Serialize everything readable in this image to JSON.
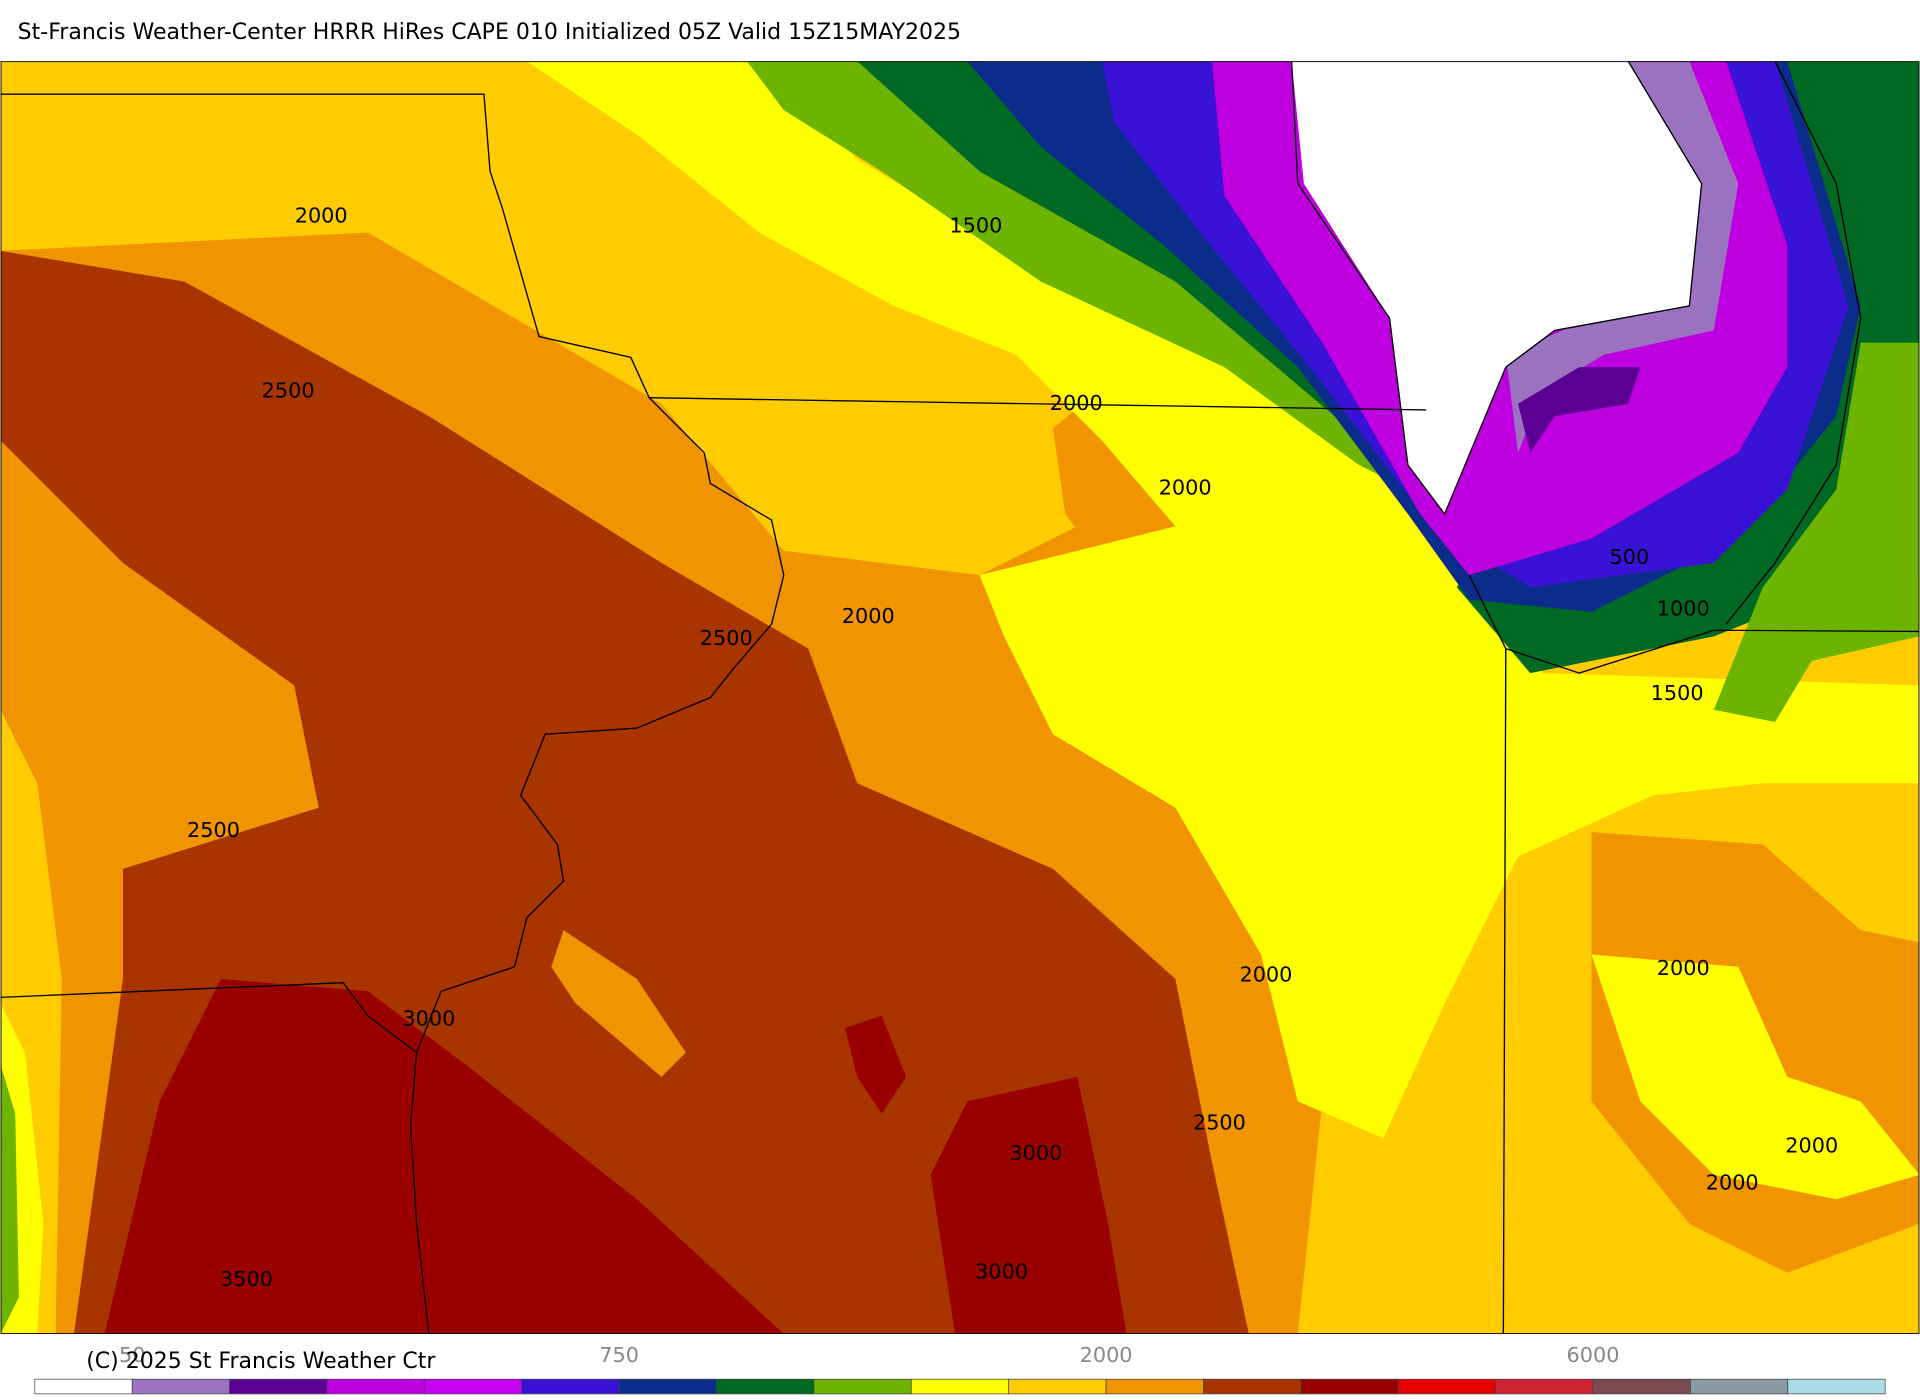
{
  "header": {
    "title": "St-Francis Weather-Center HRRR HiRes CAPE  010 Initialized  05Z Valid 15Z15MAY2025"
  },
  "contour_labels": [
    "2000",
    "1500",
    "2500",
    "2000",
    "2000",
    "500",
    "1000",
    "2500",
    "2000",
    "1500",
    "2500",
    "2000",
    "2000",
    "3000",
    "2500",
    "3000",
    "2000",
    "2000",
    "3500",
    "3000"
  ],
  "colorbar": {
    "colors": [
      "#ffffff",
      "#9b72c0",
      "#5c0094",
      "#be00e0",
      "#c800f0",
      "#3a12d6",
      "#0c2c8c",
      "#006a24",
      "#6cb400",
      "#ffff00",
      "#ffcc00",
      "#f09400",
      "#a83400",
      "#990000",
      "#e80000",
      "#cc2234",
      "#7a4a52",
      "#8a9aa2",
      "#aadbe4"
    ],
    "labels": [
      "50",
      "750",
      "2000",
      "6000"
    ]
  },
  "copyright": "(C) 2025 St Francis Weather Ctr"
}
